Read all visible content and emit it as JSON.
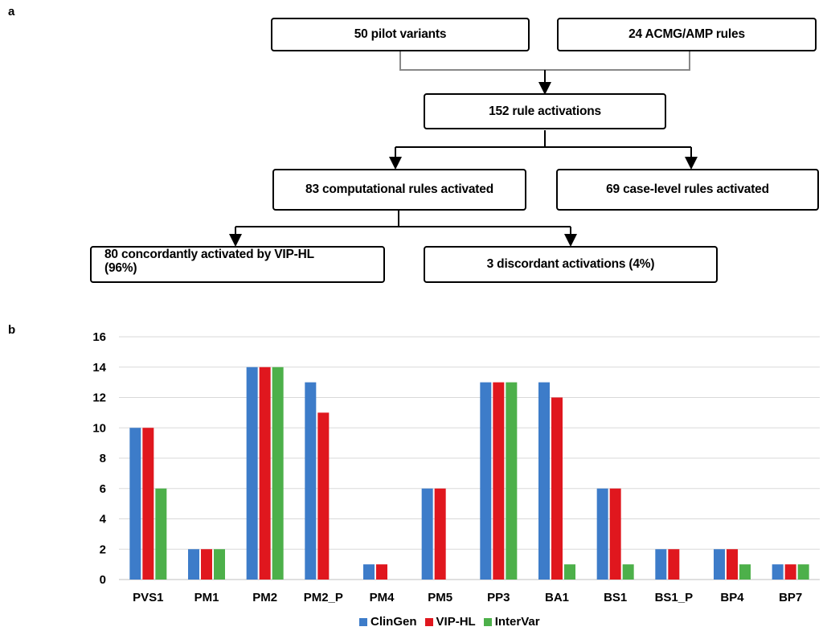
{
  "panel_a": {
    "label": "a",
    "boxes": {
      "pilot_variants": "50 pilot variants",
      "acmg_rules": "24 ACMG/AMP rules",
      "rule_activations": "152 rule activations",
      "computational": "83 computational rules activated",
      "case_level": "69 case-level rules activated",
      "concordant_line1": "80 concordantly activated by VIP-HL",
      "concordant_line2": "(96%)",
      "discordant": "3 discordant activations (4%)"
    }
  },
  "panel_b": {
    "label": "b"
  },
  "colors": {
    "ClinGen": "#3d7cc9",
    "VIP-HL": "#e0171e",
    "InterVar": "#4db04a"
  },
  "chart_data": {
    "type": "bar",
    "title": "",
    "xlabel": "",
    "ylabel": "",
    "ylim": [
      0,
      16
    ],
    "yticks": [
      0,
      2,
      4,
      6,
      8,
      10,
      12,
      14,
      16
    ],
    "grid": true,
    "legend_position": "bottom",
    "categories": [
      "PVS1",
      "PM1",
      "PM2",
      "PM2_P",
      "PM4",
      "PM5",
      "PP3",
      "BA1",
      "BS1",
      "BS1_P",
      "BP4",
      "BP7"
    ],
    "series": [
      {
        "name": "ClinGen",
        "values": [
          10,
          2,
          14,
          13,
          1,
          6,
          13,
          13,
          6,
          2,
          2,
          1
        ]
      },
      {
        "name": "VIP-HL",
        "values": [
          10,
          2,
          14,
          11,
          1,
          6,
          13,
          12,
          6,
          2,
          2,
          1
        ]
      },
      {
        "name": "InterVar",
        "values": [
          6,
          2,
          14,
          0,
          0,
          0,
          13,
          1,
          1,
          0,
          1,
          1
        ]
      }
    ]
  }
}
